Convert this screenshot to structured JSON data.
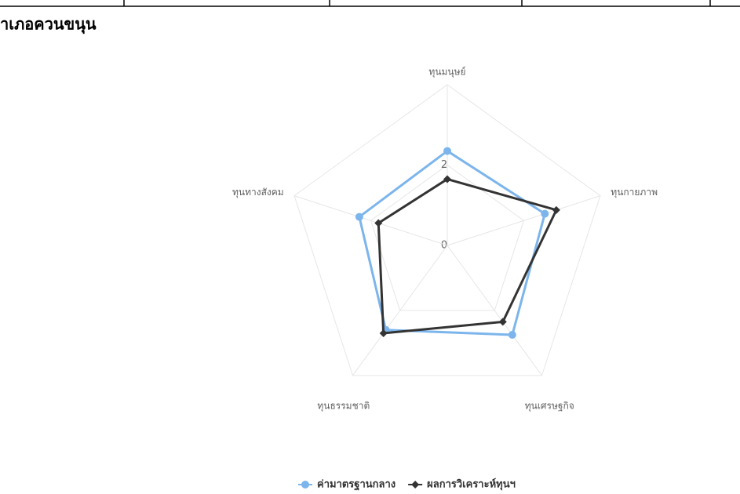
{
  "chart_data": {
    "type": "radar",
    "title": "าเภอควนขนุน",
    "categories": [
      "ทุนมนุษย์",
      "ทุนกายภาพ",
      "ทุนเศรษฐกิจ",
      "ทุนธรรมชาติ",
      "ทุนทางสังคม"
    ],
    "ylim": [
      0,
      4
    ],
    "yticks": [
      0,
      2
    ],
    "series": [
      {
        "name": "ค่ามาตรฐานกลาง",
        "color": "#7cb5ec",
        "values": [
          2.35,
          2.55,
          2.75,
          2.6,
          2.3
        ]
      },
      {
        "name": "ผลการวิเคราะห์ทุนฯ",
        "color": "#333333",
        "values": [
          1.65,
          2.85,
          2.35,
          2.7,
          1.8
        ]
      }
    ]
  }
}
